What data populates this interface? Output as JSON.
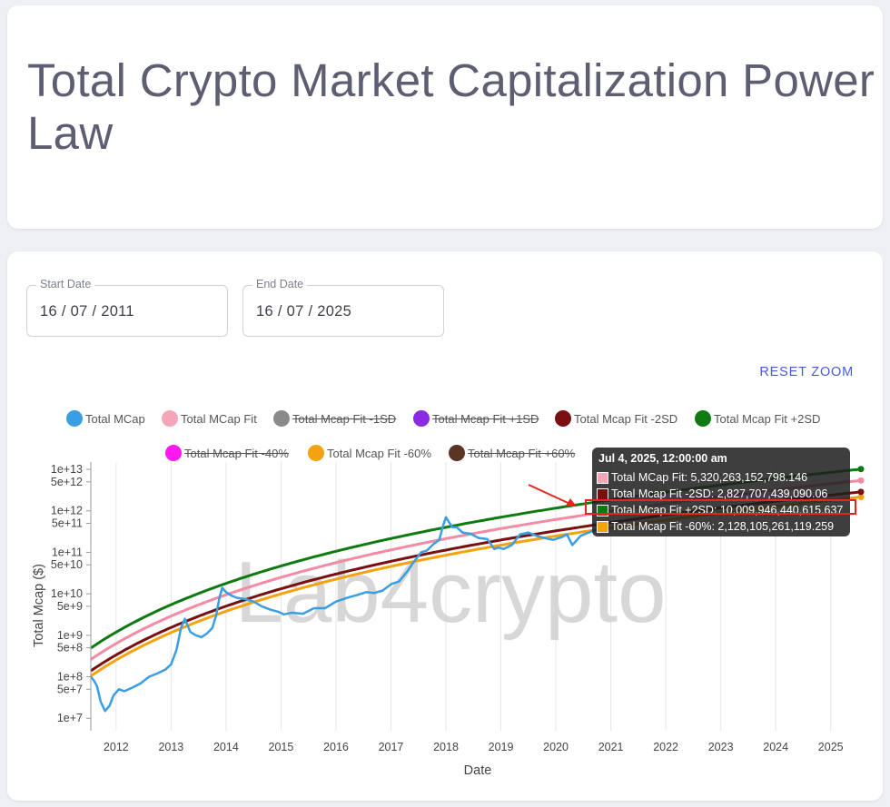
{
  "page_title": "Total Crypto Market Capitalization Power Law",
  "start_date": {
    "label": "Start Date",
    "value": "16 / 07 / 2011"
  },
  "end_date": {
    "label": "End Date",
    "value": "16 / 07 / 2025"
  },
  "reset_zoom_label": "RESET ZOOM",
  "watermark": "Lab4crypto",
  "legend": [
    {
      "label": "Total MCap",
      "color": "#3a9ee4",
      "active": true
    },
    {
      "label": "Total MCap Fit",
      "color": "#f4a6b8",
      "active": true
    },
    {
      "label": "Total Mcap Fit -1SD",
      "color": "#8a8a8a",
      "active": false
    },
    {
      "label": "Total Mcap Fit +1SD",
      "color": "#8a2be2",
      "active": false
    },
    {
      "label": "Total Mcap Fit -2SD",
      "color": "#7a0f0f",
      "active": true
    },
    {
      "label": "Total Mcap Fit +2SD",
      "color": "#0f7a0f",
      "active": true
    },
    {
      "label": "Total Mcap Fit -40%",
      "color": "#ff18f0",
      "active": false
    },
    {
      "label": "Total Mcap Fit -60%",
      "color": "#f5a20f",
      "active": true
    },
    {
      "label": "Total Mcap Fit +60%",
      "color": "#5a3425",
      "active": false
    }
  ],
  "tooltip": {
    "title": "Jul 4, 2025, 12:00:00 am",
    "rows": [
      {
        "label": "Total MCap Fit: 5,320,263,152,798.146",
        "color": "#f4a6b8"
      },
      {
        "label": "Total Mcap Fit -2SD: 2,827,707,439,090.06",
        "color": "#7a0f0f"
      },
      {
        "label": "Total Mcap Fit +2SD: 10,009,946,440,615.637",
        "color": "#0f7a0f"
      },
      {
        "label": "Total Mcap Fit -60%: 2,128,105,261,119.259",
        "color": "#f5a20f"
      }
    ]
  },
  "chart_data": {
    "type": "line",
    "xlabel": "Date",
    "ylabel": "Total Mcap ($)",
    "x_ticks": [
      "2012",
      "2013",
      "2014",
      "2015",
      "2016",
      "2017",
      "2018",
      "2019",
      "2020",
      "2021",
      "2022",
      "2023",
      "2024",
      "2025"
    ],
    "y_scale": "log",
    "y_ticks": [
      "1e+7",
      "5e+7",
      "1e+8",
      "5e+8",
      "1e+9",
      "5e+9",
      "1e+10",
      "5e+10",
      "1e+11",
      "5e+11",
      "1e+12",
      "5e+12",
      "1e+13"
    ],
    "ylim": [
      5000000,
      15000000000000
    ],
    "xlim": [
      2011.54,
      2025.55
    ],
    "grid": "vertical",
    "series": [
      {
        "name": "Total MCap",
        "color": "#3a9ee4",
        "x": [
          2011.54,
          2011.6,
          2011.65,
          2011.72,
          2011.8,
          2011.88,
          2011.95,
          2012.05,
          2012.15,
          2012.3,
          2012.45,
          2012.6,
          2012.75,
          2012.9,
          2013.0,
          2013.1,
          2013.18,
          2013.25,
          2013.35,
          2013.45,
          2013.55,
          2013.65,
          2013.75,
          2013.82,
          2013.88,
          2013.93,
          2014.0,
          2014.1,
          2014.2,
          2014.35,
          2014.5,
          2014.65,
          2014.8,
          2014.95,
          2015.05,
          2015.2,
          2015.4,
          2015.6,
          2015.8,
          2016.0,
          2016.2,
          2016.4,
          2016.55,
          2016.7,
          2016.85,
          2017.0,
          2017.15,
          2017.3,
          2017.42,
          2017.55,
          2017.65,
          2017.78,
          2017.88,
          2017.95,
          2018.0,
          2018.05,
          2018.12,
          2018.2,
          2018.3,
          2018.45,
          2018.6,
          2018.75,
          2018.88,
          2018.95,
          2019.05,
          2019.2,
          2019.35,
          2019.5,
          2019.65,
          2019.8,
          2019.95,
          2020.1,
          2020.2,
          2020.3,
          2020.45,
          2020.6,
          2020.75
        ],
        "y": [
          100000000,
          80000000,
          60000000,
          25000000,
          15000000,
          20000000,
          35000000,
          50000000,
          45000000,
          55000000,
          70000000,
          100000000,
          120000000,
          150000000,
          200000000,
          450000000,
          1500000000,
          2500000000,
          1200000000,
          1000000000,
          900000000,
          1100000000,
          1500000000,
          3000000000,
          8000000000,
          14000000000,
          11000000000,
          9000000000,
          8000000000,
          7500000000,
          6500000000,
          5000000000,
          4200000000,
          3700000000,
          3200000000,
          3500000000,
          3300000000,
          4500000000,
          4500000000,
          6500000000,
          8000000000,
          9500000000,
          11000000000,
          10500000000,
          12000000000,
          17000000000,
          20000000000,
          35000000000,
          60000000000,
          100000000000,
          110000000000,
          160000000000,
          200000000000,
          450000000000,
          700000000000,
          550000000000,
          400000000000,
          400000000000,
          300000000000,
          280000000000,
          220000000000,
          210000000000,
          120000000000,
          130000000000,
          120000000000,
          150000000000,
          270000000000,
          300000000000,
          250000000000,
          220000000000,
          200000000000,
          230000000000,
          270000000000,
          150000000000,
          250000000000,
          300000000000,
          370000000000
        ]
      },
      {
        "name": "Total MCap Fit",
        "color": "#f48aa3",
        "pivot": 5320263152798.146
      },
      {
        "name": "Total Mcap Fit -2SD",
        "color": "#7a0f0f",
        "pivot": 2827707439090.06
      },
      {
        "name": "Total Mcap Fit +2SD",
        "color": "#0f7a0f",
        "pivot": 10009946440615.637
      },
      {
        "name": "Total Mcap Fit -60%",
        "color": "#f5a20f",
        "pivot": 2128105261119.259
      }
    ]
  }
}
